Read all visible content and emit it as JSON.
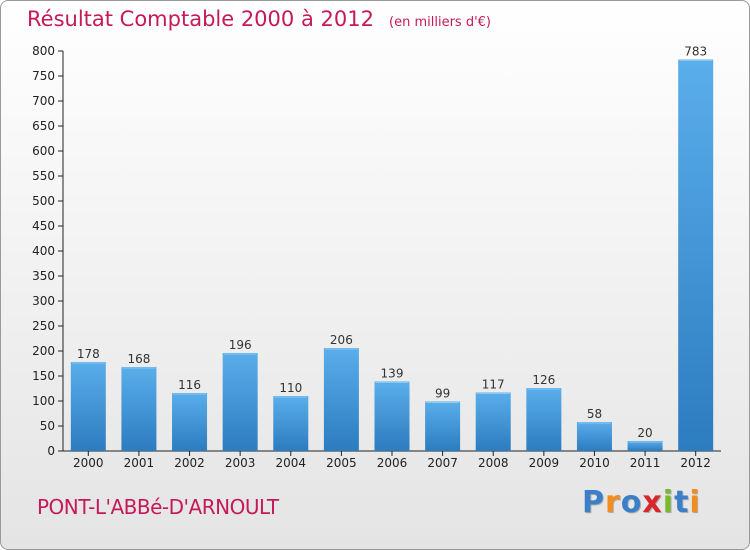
{
  "chart_data": {
    "type": "bar",
    "title": "Résultat Comptable 2000 à 2012",
    "subtitle": "(en milliers d'€)",
    "categories": [
      "2000",
      "2001",
      "2002",
      "2003",
      "2004",
      "2005",
      "2006",
      "2007",
      "2008",
      "2009",
      "2010",
      "2011",
      "2012"
    ],
    "values": [
      178,
      168,
      116,
      196,
      110,
      206,
      139,
      99,
      117,
      126,
      58,
      20,
      783
    ],
    "ylim": [
      0,
      800
    ],
    "yticks": [
      0,
      50,
      100,
      150,
      200,
      250,
      300,
      350,
      400,
      450,
      500,
      550,
      600,
      650,
      700,
      750,
      800
    ],
    "xlabel": "",
    "ylabel": "",
    "grid": false,
    "bar_color": "#3a8fd6"
  },
  "footer": {
    "city": "PONT-L'ABBé-D'ARNOULT",
    "logo": "Proxiti",
    "logo_colors": [
      "#3a7fc8",
      "#f28c1c",
      "#3a7fc8",
      "#d9262c",
      "#7ab82e",
      "#3a7fc8",
      "#f28c1c"
    ]
  }
}
